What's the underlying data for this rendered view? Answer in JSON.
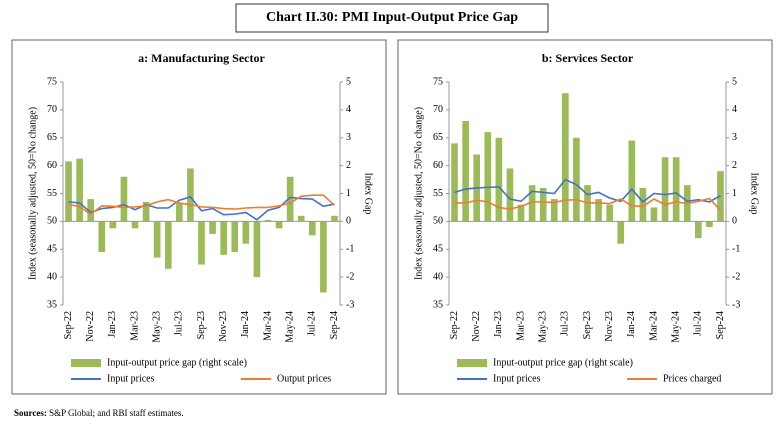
{
  "title": "Chart II.30: PMI Input-Output Price Gap",
  "source_label": "Sources:",
  "source_text": "S&P Global; and RBI staff estimates.",
  "chart_data": [
    {
      "type": "bar-line",
      "title": "a: Manufacturing Sector",
      "ylabel": "Index (seasonally adjusted, 50=No change)",
      "y2label": "Index Gap",
      "categories": [
        "Sep-22",
        null,
        "Nov-22",
        null,
        "Jan-23",
        null,
        "Mar-23",
        null,
        "May-23",
        null,
        "Jul-23",
        null,
        "Sep-23",
        null,
        "Nov-23",
        null,
        "Jan-24",
        null,
        "Mar-24",
        null,
        "May-24",
        null,
        "Jul-24",
        null,
        "Sep-24"
      ],
      "ylim": [
        35,
        75
      ],
      "yticks": [
        35,
        40,
        45,
        50,
        55,
        60,
        65,
        70,
        75
      ],
      "y2lim": [
        -3,
        5
      ],
      "y2ticks": [
        -3,
        -2,
        -1,
        0,
        1,
        2,
        3,
        4,
        5
      ],
      "series": [
        {
          "name": "Input-output price gap (right scale)",
          "color": "#9bbb59",
          "mark": "bar",
          "axis": "y2",
          "values": [
            2.15,
            2.25,
            0.8,
            -1.1,
            -0.25,
            1.6,
            -0.25,
            0.7,
            -1.3,
            -1.7,
            0.65,
            1.9,
            -1.55,
            -0.45,
            -1.2,
            -1.1,
            -0.8,
            -2.0,
            0.05,
            -0.25,
            1.6,
            0.2,
            -0.5,
            -2.55,
            0.2
          ]
        },
        {
          "name": "Input prices",
          "color": "#4472c4",
          "mark": "line",
          "values": [
            53.5,
            53.3,
            51.6,
            52.3,
            52.5,
            53.0,
            52.1,
            53.0,
            52.4,
            52.4,
            53.8,
            54.4,
            51.9,
            52.3,
            51.2,
            51.3,
            51.6,
            50.3,
            52.0,
            52.5,
            54.3,
            54.1,
            54.0,
            52.7,
            53.1
          ]
        },
        {
          "name": "Output prices",
          "color": "#ed7d31",
          "mark": "line",
          "values": [
            53.1,
            52.6,
            51.3,
            52.8,
            52.7,
            52.5,
            52.6,
            52.8,
            53.5,
            53.9,
            53.3,
            53.0,
            52.6,
            52.5,
            52.3,
            52.2,
            52.4,
            52.5,
            52.5,
            52.8,
            53.3,
            54.5,
            54.7,
            54.7,
            52.9
          ]
        }
      ]
    },
    {
      "type": "bar-line",
      "title": "b: Services Sector",
      "ylabel": "Index (seasonally adjusted, 50=No change)",
      "y2label": "Index Gap",
      "categories": [
        "Sep-22",
        null,
        "Nov-22",
        null,
        "Jan-23",
        null,
        "Mar-23",
        null,
        "May-23",
        null,
        "Jul-23",
        null,
        "Sep-23",
        null,
        "Nov-23",
        null,
        "Jan-24",
        null,
        "Mar-24",
        null,
        "May-24",
        null,
        "Jul-24",
        null,
        "Sep-24"
      ],
      "ylim": [
        35,
        75
      ],
      "yticks": [
        35,
        40,
        45,
        50,
        55,
        60,
        65,
        70,
        75
      ],
      "y2lim": [
        -3,
        5
      ],
      "y2ticks": [
        -3,
        -2,
        -1,
        0,
        1,
        2,
        3,
        4,
        5
      ],
      "series": [
        {
          "name": "Input-output price gap (right scale)",
          "color": "#9bbb59",
          "mark": "bar",
          "axis": "y2",
          "values": [
            2.8,
            3.6,
            2.4,
            3.2,
            3.0,
            1.9,
            0.6,
            1.3,
            1.2,
            0.8,
            4.6,
            3.0,
            1.3,
            0.8,
            0.6,
            -0.8,
            2.9,
            1.2,
            0.5,
            2.3,
            2.3,
            1.3,
            -0.6,
            -0.2,
            1.8
          ]
        },
        {
          "name": "Input prices",
          "color": "#4472c4",
          "mark": "line",
          "values": [
            55.2,
            55.8,
            56.0,
            56.1,
            56.2,
            54.0,
            53.6,
            55.4,
            55.2,
            55.0,
            57.5,
            56.6,
            54.8,
            55.2,
            54.2,
            53.6,
            55.8,
            53.5,
            55.0,
            54.8,
            55.1,
            53.6,
            53.9,
            53.5,
            54.6
          ]
        },
        {
          "name": "Prices charged",
          "color": "#ed7d31",
          "mark": "line",
          "values": [
            53.3,
            53.3,
            53.8,
            53.5,
            52.5,
            52.2,
            52.7,
            53.5,
            53.5,
            53.4,
            53.8,
            53.9,
            53.3,
            53.3,
            53.2,
            54.0,
            52.8,
            52.7,
            54.0,
            53.0,
            53.5,
            53.2,
            53.6,
            54.1,
            52.0
          ]
        }
      ]
    }
  ]
}
